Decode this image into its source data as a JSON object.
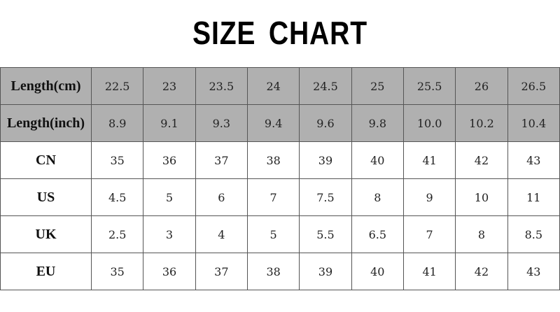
{
  "title": "SIZE CHART",
  "colors": {
    "header_rows_bg": "#b0b0b0",
    "body_bg": "#ffffff",
    "border": "#555555"
  },
  "chart_data": {
    "type": "table",
    "title": "SIZE CHART",
    "rows": [
      {
        "label": "Length(cm)",
        "shaded": true,
        "values": [
          "22.5",
          "23",
          "23.5",
          "24",
          "24.5",
          "25",
          "25.5",
          "26",
          "26.5"
        ]
      },
      {
        "label": "Length(inch)",
        "shaded": true,
        "values": [
          "8.9",
          "9.1",
          "9.3",
          "9.4",
          "9.6",
          "9.8",
          "10.0",
          "10.2",
          "10.4"
        ]
      },
      {
        "label": "CN",
        "shaded": false,
        "values": [
          "35",
          "36",
          "37",
          "38",
          "39",
          "40",
          "41",
          "42",
          "43"
        ]
      },
      {
        "label": "US",
        "shaded": false,
        "values": [
          "4.5",
          "5",
          "6",
          "7",
          "7.5",
          "8",
          "9",
          "10",
          "11"
        ]
      },
      {
        "label": "UK",
        "shaded": false,
        "values": [
          "2.5",
          "3",
          "4",
          "5",
          "5.5",
          "6.5",
          "7",
          "8",
          "8.5"
        ]
      },
      {
        "label": "EU",
        "shaded": false,
        "values": [
          "35",
          "36",
          "37",
          "38",
          "39",
          "40",
          "41",
          "42",
          "43"
        ]
      }
    ]
  }
}
